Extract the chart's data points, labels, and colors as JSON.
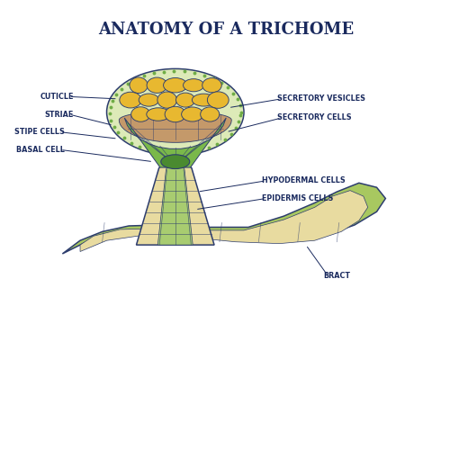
{
  "title": "ANATOMY OF A TRICHOME",
  "title_color": "#1a2a5e",
  "title_fontsize": 13,
  "background_color": "#ffffff",
  "labels": {
    "cuticle": "CUTICLE",
    "striae": "STRIAE",
    "stipe_cells": "STIPE CELLS",
    "basal_cell": "BASAL CELL",
    "secretory_vesicles": "SECRETORY VESICLES",
    "secretory_cells": "SECRETORY CELLS",
    "hypodermal_cells": "HYPODERMAL CELLS",
    "epidermis_cells": "EPIDERMIS CELLS",
    "bract": "BRACT"
  },
  "colors": {
    "head_outer_fill": "#ddeab8",
    "head_outer_border": "#2d3d6e",
    "secretory_vesicles_fill": "#e8b830",
    "secretory_vesicles_border": "#2d3d6e",
    "secretory_cells_fill": "#c4996a",
    "secretory_cells_border": "#2d3d6e",
    "stipe_fill": "#7ab84a",
    "stipe_border": "#2d3d6e",
    "basal_cell_fill": "#4a8a30",
    "basal_cell_border": "#2d3d6e",
    "stem_outer_fill": "#e8dba0",
    "stem_outer_border": "#2d3d6e",
    "stem_inner_fill": "#a8cc70",
    "bract_fill": "#a8c860",
    "bract_border": "#2d3d6e",
    "bract_inner_fill": "#e8dba0",
    "label_color": "#1a2a5e",
    "line_color": "#1a2a5e",
    "cuticle_dot_color": "#6aaa40"
  }
}
